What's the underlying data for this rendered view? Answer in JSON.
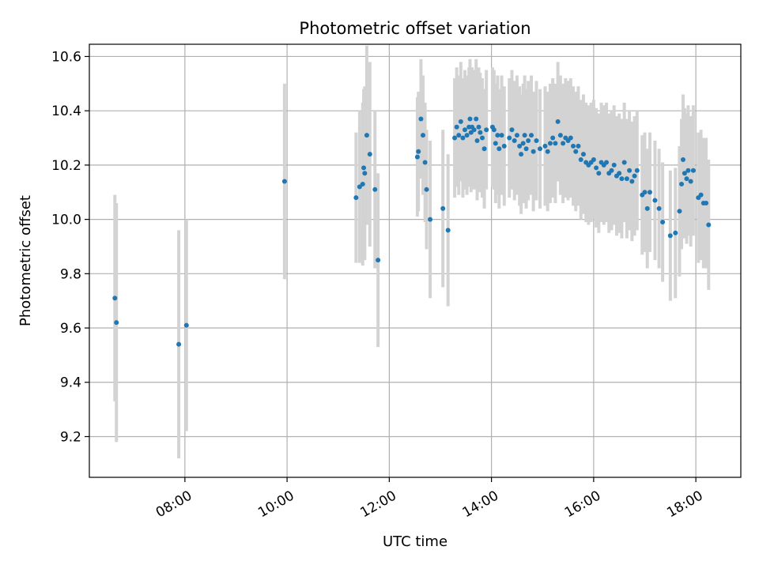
{
  "chart_data": {
    "type": "scatter",
    "title": "Photometric offset variation",
    "xlabel": "UTC time",
    "ylabel": "Photometric offset",
    "x_unit": "hours UTC",
    "xlim": [
      6.13,
      18.88
    ],
    "ylim": [
      9.05,
      10.645
    ],
    "x_ticks": [
      {
        "value": 8,
        "label": "08:00"
      },
      {
        "value": 10,
        "label": "10:00"
      },
      {
        "value": 12,
        "label": "12:00"
      },
      {
        "value": 14,
        "label": "14:00"
      },
      {
        "value": 16,
        "label": "16:00"
      },
      {
        "value": 18,
        "label": "18:00"
      }
    ],
    "y_ticks": [
      {
        "value": 9.2,
        "label": "9.2"
      },
      {
        "value": 9.4,
        "label": "9.4"
      },
      {
        "value": 9.6,
        "label": "9.6"
      },
      {
        "value": 9.8,
        "label": "9.8"
      },
      {
        "value": 10.0,
        "label": "10.0"
      },
      {
        "value": 10.2,
        "label": "10.2"
      },
      {
        "value": 10.4,
        "label": "10.4"
      },
      {
        "value": 10.6,
        "label": "10.6"
      }
    ],
    "grid": true,
    "legend": "none",
    "colors": {
      "points": "#1f77b4",
      "error_bars": "#d3d3d3",
      "grid": "#b0b0b0"
    },
    "series": [
      {
        "values": [
          [
            6.63,
            9.71,
            0.38
          ],
          [
            6.66,
            9.62,
            0.44
          ],
          [
            7.88,
            9.54,
            0.42
          ],
          [
            8.03,
            9.61,
            0.39
          ],
          [
            9.95,
            10.14,
            0.36
          ],
          [
            11.35,
            10.08,
            0.24
          ],
          [
            11.42,
            10.12,
            0.28
          ],
          [
            11.48,
            10.13,
            0.3
          ],
          [
            11.5,
            10.19,
            0.29
          ],
          [
            11.52,
            10.17,
            0.32
          ],
          [
            11.56,
            10.31,
            0.33
          ],
          [
            11.62,
            10.24,
            0.34
          ],
          [
            11.72,
            10.11,
            0.29
          ],
          [
            11.78,
            9.85,
            0.32
          ],
          [
            12.55,
            10.23,
            0.22
          ],
          [
            12.57,
            10.25,
            0.22
          ],
          [
            12.62,
            10.37,
            0.22
          ],
          [
            12.66,
            10.31,
            0.22
          ],
          [
            12.7,
            10.21,
            0.22
          ],
          [
            12.73,
            10.11,
            0.22
          ],
          [
            12.8,
            10.0,
            0.29
          ],
          [
            13.05,
            10.04,
            0.29
          ],
          [
            13.15,
            9.96,
            0.28
          ],
          [
            13.28,
            10.3,
            0.22
          ],
          [
            13.32,
            10.34,
            0.22
          ],
          [
            13.36,
            10.31,
            0.22
          ],
          [
            13.4,
            10.36,
            0.22
          ],
          [
            13.44,
            10.3,
            0.22
          ],
          [
            13.48,
            10.33,
            0.22
          ],
          [
            13.52,
            10.31,
            0.22
          ],
          [
            13.56,
            10.34,
            0.22
          ],
          [
            13.58,
            10.37,
            0.22
          ],
          [
            13.6,
            10.32,
            0.22
          ],
          [
            13.62,
            10.34,
            0.22
          ],
          [
            13.66,
            10.33,
            0.22
          ],
          [
            13.7,
            10.37,
            0.22
          ],
          [
            13.72,
            10.29,
            0.22
          ],
          [
            13.75,
            10.34,
            0.22
          ],
          [
            13.78,
            10.32,
            0.22
          ],
          [
            13.82,
            10.3,
            0.22
          ],
          [
            13.86,
            10.26,
            0.22
          ],
          [
            13.9,
            10.33,
            0.22
          ],
          [
            14.02,
            10.34,
            0.22
          ],
          [
            14.05,
            10.33,
            0.22
          ],
          [
            14.08,
            10.28,
            0.22
          ],
          [
            14.12,
            10.31,
            0.22
          ],
          [
            14.15,
            10.26,
            0.22
          ],
          [
            14.2,
            10.31,
            0.22
          ],
          [
            14.25,
            10.27,
            0.22
          ],
          [
            14.35,
            10.3,
            0.22
          ],
          [
            14.4,
            10.33,
            0.22
          ],
          [
            14.45,
            10.29,
            0.22
          ],
          [
            14.5,
            10.31,
            0.22
          ],
          [
            14.55,
            10.27,
            0.22
          ],
          [
            14.58,
            10.24,
            0.22
          ],
          [
            14.62,
            10.28,
            0.22
          ],
          [
            14.65,
            10.31,
            0.22
          ],
          [
            14.68,
            10.26,
            0.22
          ],
          [
            14.72,
            10.29,
            0.22
          ],
          [
            14.78,
            10.31,
            0.22
          ],
          [
            14.82,
            10.25,
            0.22
          ],
          [
            14.88,
            10.29,
            0.22
          ],
          [
            14.95,
            10.26,
            0.22
          ],
          [
            15.05,
            10.27,
            0.22
          ],
          [
            15.1,
            10.25,
            0.22
          ],
          [
            15.15,
            10.28,
            0.22
          ],
          [
            15.2,
            10.3,
            0.22
          ],
          [
            15.25,
            10.28,
            0.22
          ],
          [
            15.3,
            10.36,
            0.22
          ],
          [
            15.35,
            10.31,
            0.22
          ],
          [
            15.4,
            10.28,
            0.22
          ],
          [
            15.45,
            10.3,
            0.22
          ],
          [
            15.5,
            10.29,
            0.22
          ],
          [
            15.55,
            10.3,
            0.22
          ],
          [
            15.6,
            10.27,
            0.22
          ],
          [
            15.65,
            10.25,
            0.22
          ],
          [
            15.7,
            10.27,
            0.22
          ],
          [
            15.75,
            10.22,
            0.22
          ],
          [
            15.8,
            10.24,
            0.22
          ],
          [
            15.85,
            10.21,
            0.22
          ],
          [
            15.9,
            10.2,
            0.22
          ],
          [
            15.95,
            10.21,
            0.22
          ],
          [
            16.0,
            10.22,
            0.22
          ],
          [
            16.05,
            10.19,
            0.22
          ],
          [
            16.1,
            10.17,
            0.22
          ],
          [
            16.15,
            10.21,
            0.22
          ],
          [
            16.2,
            10.2,
            0.22
          ],
          [
            16.25,
            10.21,
            0.22
          ],
          [
            16.3,
            10.17,
            0.22
          ],
          [
            16.35,
            10.18,
            0.22
          ],
          [
            16.4,
            10.2,
            0.22
          ],
          [
            16.45,
            10.16,
            0.22
          ],
          [
            16.5,
            10.17,
            0.22
          ],
          [
            16.55,
            10.15,
            0.22
          ],
          [
            16.6,
            10.21,
            0.22
          ],
          [
            16.65,
            10.15,
            0.22
          ],
          [
            16.7,
            10.18,
            0.22
          ],
          [
            16.75,
            10.14,
            0.22
          ],
          [
            16.8,
            10.16,
            0.22
          ],
          [
            16.85,
            10.18,
            0.22
          ],
          [
            16.95,
            10.09,
            0.22
          ],
          [
            17.0,
            10.1,
            0.22
          ],
          [
            17.05,
            10.04,
            0.22
          ],
          [
            17.1,
            10.1,
            0.22
          ],
          [
            17.2,
            10.07,
            0.22
          ],
          [
            17.28,
            10.04,
            0.22
          ],
          [
            17.35,
            9.99,
            0.22
          ],
          [
            17.5,
            9.94,
            0.24
          ],
          [
            17.6,
            9.95,
            0.24
          ],
          [
            17.68,
            10.03,
            0.24
          ],
          [
            17.72,
            10.13,
            0.24
          ],
          [
            17.75,
            10.22,
            0.24
          ],
          [
            17.78,
            10.17,
            0.24
          ],
          [
            17.82,
            10.15,
            0.24
          ],
          [
            17.85,
            10.18,
            0.24
          ],
          [
            17.9,
            10.14,
            0.24
          ],
          [
            17.95,
            10.18,
            0.24
          ],
          [
            18.05,
            10.08,
            0.24
          ],
          [
            18.1,
            10.09,
            0.24
          ],
          [
            18.15,
            10.06,
            0.24
          ],
          [
            18.2,
            10.06,
            0.24
          ],
          [
            18.25,
            9.98,
            0.24
          ]
        ]
      }
    ]
  }
}
